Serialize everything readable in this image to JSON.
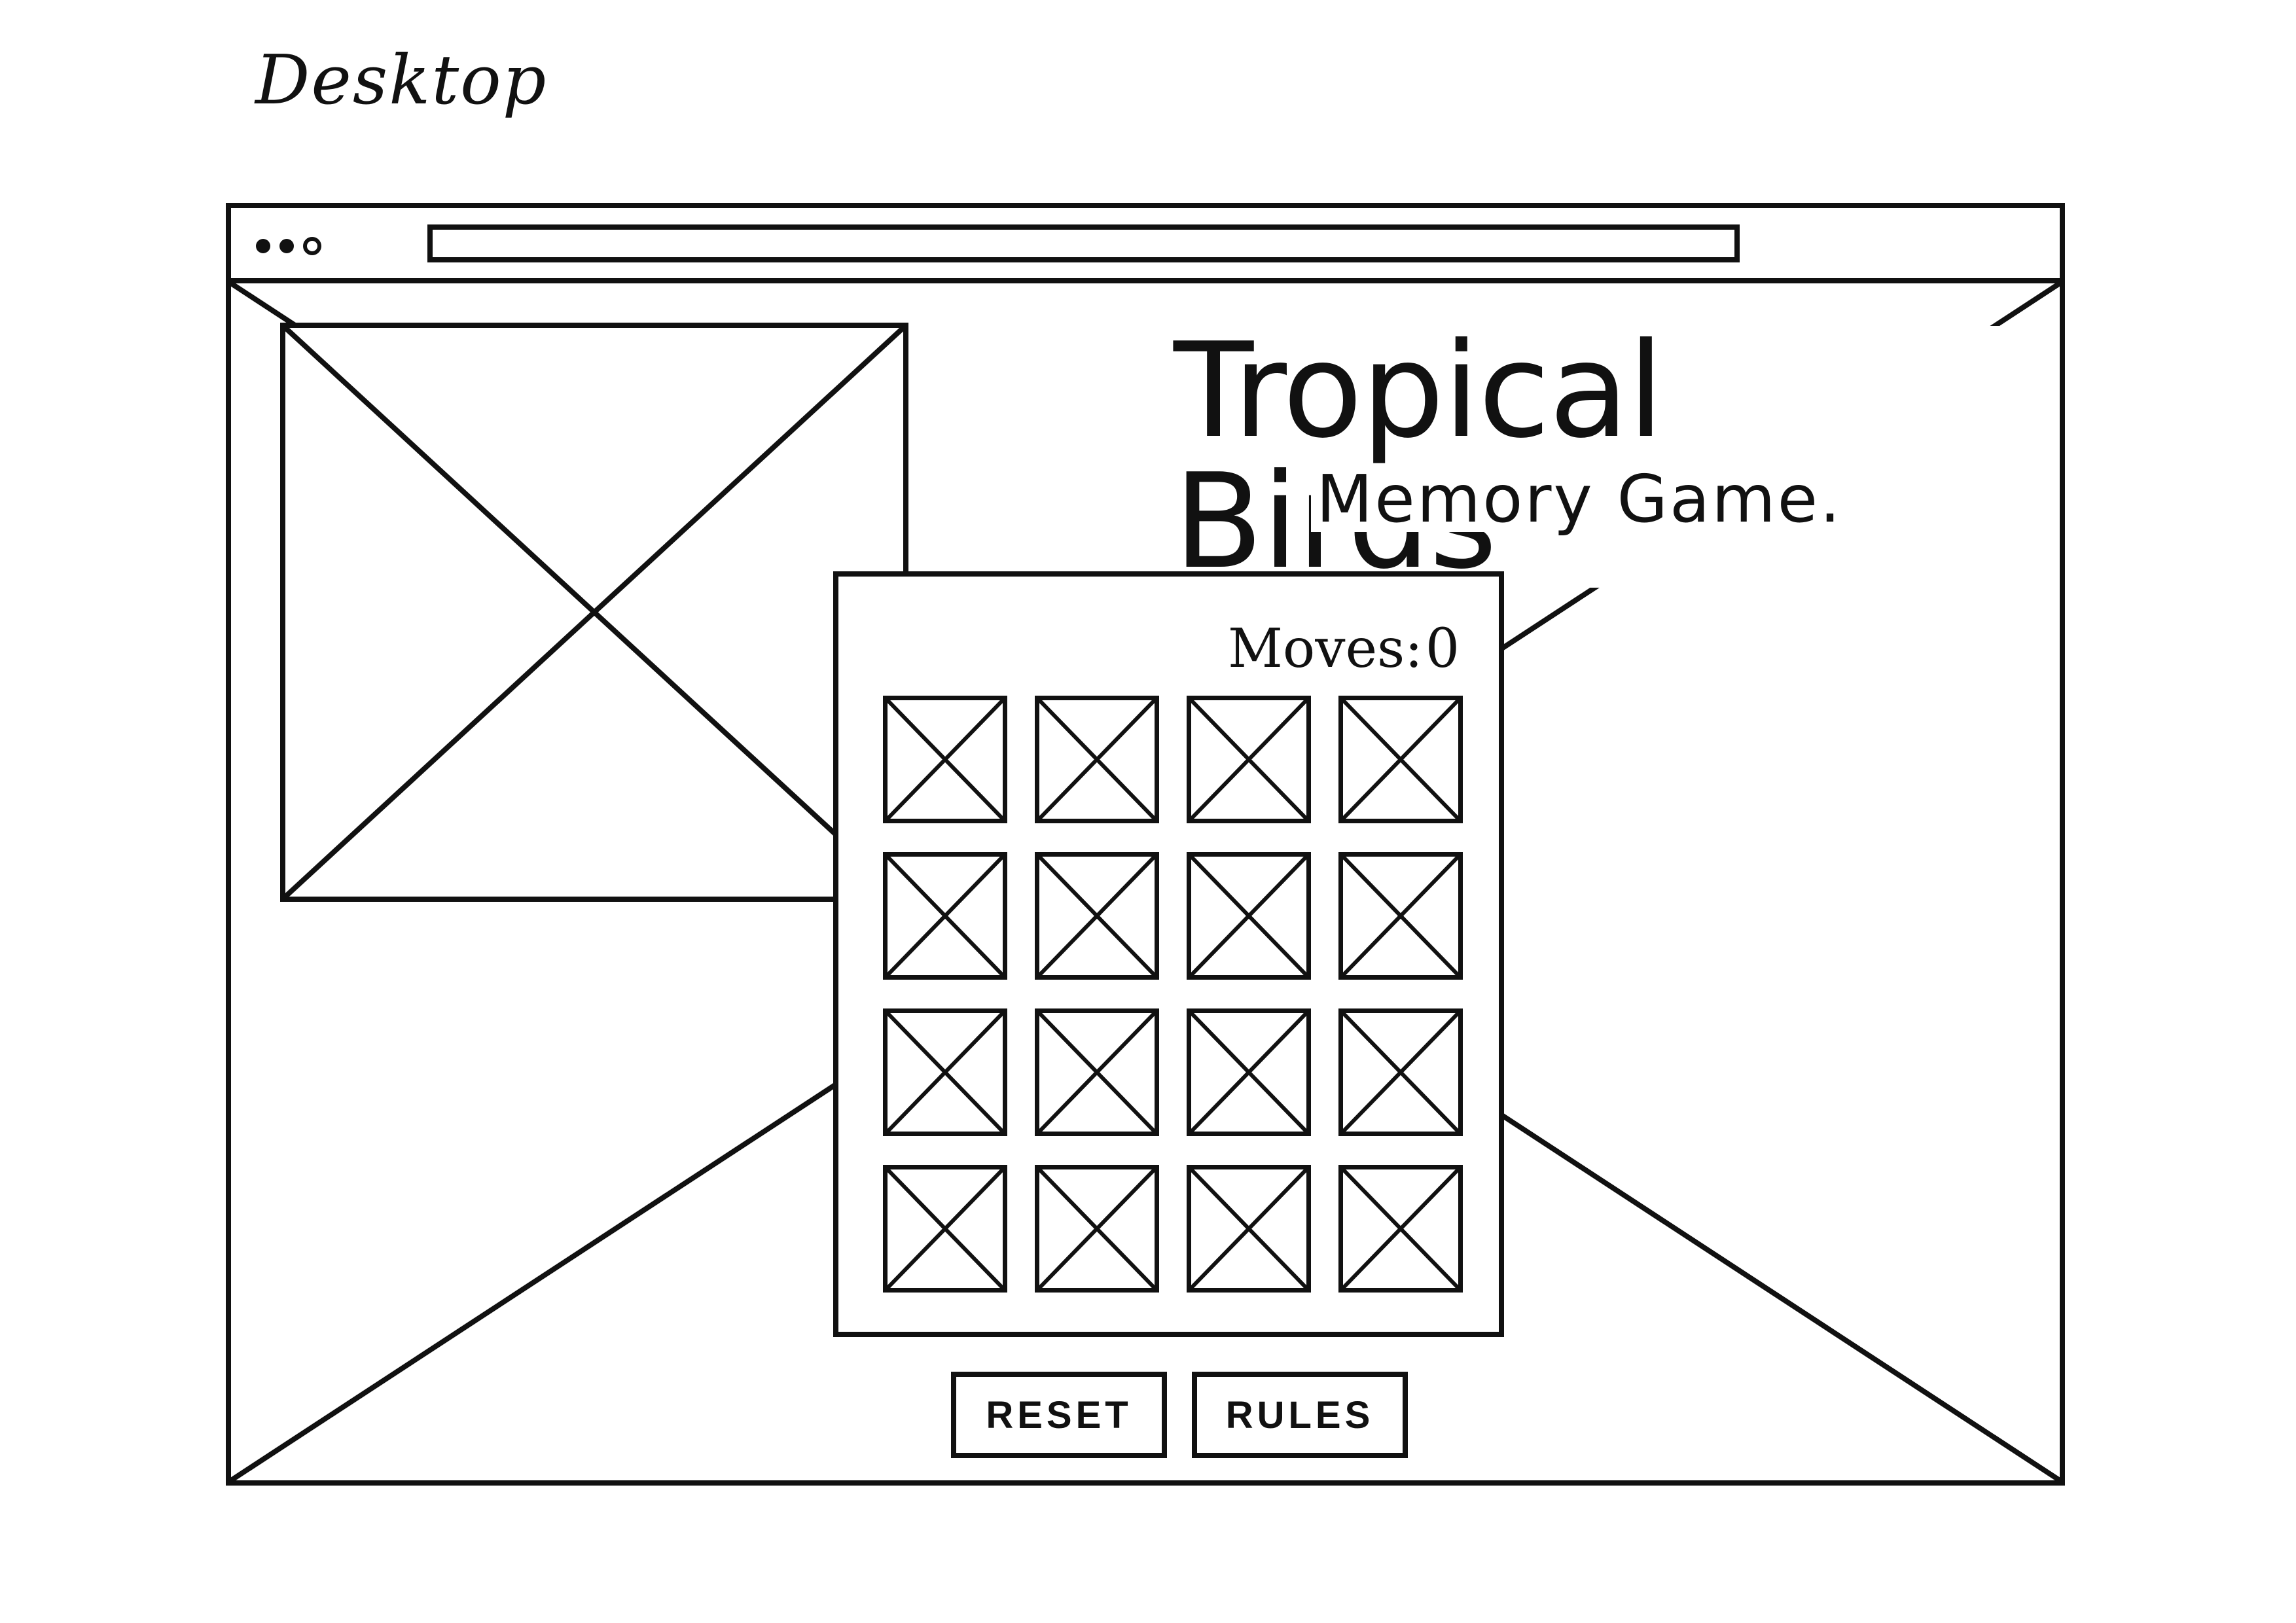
{
  "frame_label": "Desktop",
  "header": {
    "title": "Tropical Birds",
    "subtitle": "Memory Game."
  },
  "game": {
    "moves_label": "Moves:",
    "moves_value": "0",
    "cards": [
      "image-placeholder-icon",
      "image-placeholder-icon",
      "image-placeholder-icon",
      "image-placeholder-icon",
      "image-placeholder-icon",
      "image-placeholder-icon",
      "image-placeholder-icon",
      "image-placeholder-icon",
      "image-placeholder-icon",
      "image-placeholder-icon",
      "image-placeholder-icon",
      "image-placeholder-icon",
      "image-placeholder-icon",
      "image-placeholder-icon",
      "image-placeholder-icon",
      "image-placeholder-icon"
    ]
  },
  "buttons": {
    "reset_label": "RESET",
    "rules_label": "RULES"
  },
  "icons": {
    "background": "image-placeholder-icon",
    "hero": "image-placeholder-icon",
    "window_controls": "window-dots-icon"
  },
  "colors": {
    "stroke": "#111111",
    "background": "#ffffff"
  }
}
